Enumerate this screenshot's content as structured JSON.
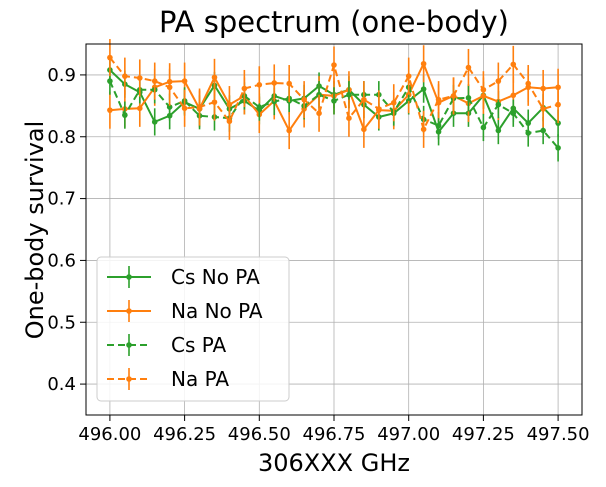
{
  "chart_data": {
    "type": "line",
    "title": "PA spectrum (one-body)",
    "xlabel": "306XXX GHz",
    "ylabel": "One-body survival",
    "xlim": [
      495.92,
      497.58
    ],
    "ylim": [
      0.35,
      0.95
    ],
    "xticks": [
      496.0,
      496.25,
      496.5,
      496.75,
      497.0,
      497.25,
      497.5
    ],
    "xtick_labels": [
      "496.00",
      "496.25",
      "496.50",
      "496.75",
      "497.00",
      "497.25",
      "497.50"
    ],
    "yticks": [
      0.4,
      0.5,
      0.6,
      0.7,
      0.8,
      0.9
    ],
    "ytick_labels": [
      "0.4",
      "0.5",
      "0.6",
      "0.7",
      "0.8",
      "0.9"
    ],
    "grid": true,
    "legend_position": "lower-left",
    "series": [
      {
        "name": "Cs No PA",
        "color": "#2ca02c",
        "dash": "solid",
        "x": [
          496.0,
          496.05,
          496.1,
          496.15,
          496.2,
          496.25,
          496.3,
          496.35,
          496.4,
          496.45,
          496.5,
          496.55,
          496.6,
          496.65,
          496.7,
          496.75,
          496.8,
          496.85,
          496.9,
          496.95,
          497.0,
          497.05,
          497.1,
          497.15,
          497.2,
          497.25,
          497.3,
          497.35,
          497.4,
          497.45,
          497.5
        ],
        "y": [
          0.908,
          0.885,
          0.872,
          0.824,
          0.834,
          0.856,
          0.845,
          0.883,
          0.845,
          0.858,
          0.842,
          0.866,
          0.858,
          0.862,
          0.882,
          0.868,
          0.876,
          0.852,
          0.832,
          0.838,
          0.858,
          0.877,
          0.808,
          0.838,
          0.838,
          0.867,
          0.81,
          0.846,
          0.822,
          0.847,
          0.822
        ],
        "yerr": 0.022
      },
      {
        "name": "Na No PA",
        "color": "#ff7f0e",
        "dash": "solid",
        "x": [
          496.0,
          496.05,
          496.1,
          496.15,
          496.2,
          496.25,
          496.3,
          496.35,
          496.4,
          496.45,
          496.5,
          496.55,
          496.6,
          496.65,
          496.7,
          496.75,
          496.8,
          496.85,
          496.9,
          496.95,
          497.0,
          497.05,
          497.1,
          497.15,
          497.2,
          497.25,
          497.3,
          497.35,
          497.4,
          497.45,
          497.5
        ],
        "y": [
          0.843,
          0.845,
          0.846,
          0.88,
          0.889,
          0.89,
          0.845,
          0.896,
          0.852,
          0.866,
          0.836,
          0.858,
          0.81,
          0.845,
          0.868,
          0.866,
          0.876,
          0.812,
          0.843,
          0.842,
          0.868,
          0.918,
          0.855,
          0.866,
          0.854,
          0.866,
          0.857,
          0.867,
          0.88,
          0.878,
          0.88
        ],
        "yerr": 0.03
      },
      {
        "name": "Cs PA",
        "color": "#2ca02c",
        "dash": "dashed",
        "x": [
          496.0,
          496.05,
          496.1,
          496.15,
          496.2,
          496.25,
          496.3,
          496.35,
          496.4,
          496.45,
          496.5,
          496.55,
          496.6,
          496.65,
          496.7,
          496.75,
          496.8,
          496.85,
          496.9,
          496.95,
          497.0,
          497.05,
          497.1,
          497.15,
          497.2,
          497.25,
          497.3,
          497.35,
          497.4,
          497.45,
          497.5
        ],
        "y": [
          0.89,
          0.835,
          0.876,
          0.876,
          0.848,
          0.858,
          0.834,
          0.832,
          0.83,
          0.866,
          0.848,
          0.857,
          0.862,
          0.85,
          0.868,
          0.858,
          0.868,
          0.868,
          0.868,
          0.84,
          0.88,
          0.828,
          0.818,
          0.862,
          0.863,
          0.815,
          0.852,
          0.838,
          0.806,
          0.81,
          0.782
        ],
        "yerr": 0.022
      },
      {
        "name": "Na PA",
        "color": "#ff7f0e",
        "dash": "dashed",
        "x": [
          496.0,
          496.05,
          496.1,
          496.15,
          496.2,
          496.25,
          496.3,
          496.35,
          496.4,
          496.45,
          496.5,
          496.55,
          496.6,
          496.65,
          496.7,
          496.75,
          496.8,
          496.85,
          496.9,
          496.95,
          497.0,
          497.05,
          497.1,
          497.15,
          497.2,
          497.25,
          497.3,
          497.35,
          497.4,
          497.45,
          497.5
        ],
        "y": [
          0.928,
          0.898,
          0.895,
          0.89,
          0.88,
          0.846,
          0.848,
          0.856,
          0.825,
          0.878,
          0.884,
          0.887,
          0.886,
          0.86,
          0.838,
          0.916,
          0.83,
          0.86,
          0.845,
          0.855,
          0.898,
          0.812,
          0.86,
          0.866,
          0.912,
          0.876,
          0.89,
          0.917,
          0.886,
          0.845,
          0.852
        ],
        "yerr": 0.03
      }
    ]
  }
}
